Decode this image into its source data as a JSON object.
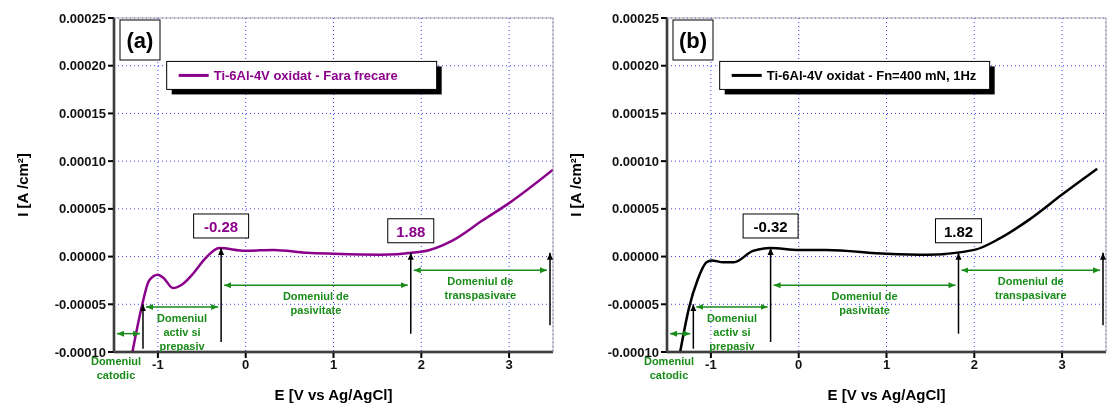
{
  "chart_data": [
    {
      "type": "line",
      "title": "(a)",
      "xlabel": "E [V vs Ag/AgCl]",
      "ylabel": "I [A /cm²]",
      "xlim": [
        -1.5,
        3.5
      ],
      "xticks": [
        -1,
        0,
        1,
        2,
        3
      ],
      "ylim": [
        -0.0001,
        0.00025
      ],
      "yticks": [
        {
          "value": -0.0001,
          "label": "-0.00010"
        },
        {
          "value": -5e-05,
          "label": "-0.00005"
        },
        {
          "value": 0,
          "label": "0.00000"
        },
        {
          "value": 5e-05,
          "label": "0.00005"
        },
        {
          "value": 0.0001,
          "label": "0.00010"
        },
        {
          "value": 0.00015,
          "label": "0.00015"
        },
        {
          "value": 0.0002,
          "label": "0.00020"
        },
        {
          "value": 0.00025,
          "label": "0.00025"
        }
      ],
      "grid": true,
      "legend": "top",
      "series": [
        {
          "name": "Ti-6Al-4V oxidat - Fara frecare",
          "color": "#8b008b",
          "x": [
            -1.29,
            -1.18,
            -1.1,
            -1.0,
            -0.93,
            -0.83,
            -0.72,
            -0.6,
            -0.47,
            -0.3,
            0,
            0.32,
            0.7,
            1.0,
            1.53,
            2.0,
            2.36,
            2.7,
            3.0,
            3.5
          ],
          "values": [
            -0.0001,
            -5.1e-05,
            -2.5e-05,
            -1.9e-05,
            -2.3e-05,
            -3.3e-05,
            -2.9e-05,
            -1.8e-05,
            -3e-06,
            9e-06,
            6e-06,
            7e-06,
            4e-06,
            3e-06,
            2e-06,
            5e-06,
            1.7e-05,
            3.8e-05,
            5.6e-05,
            9.1e-05
          ]
        }
      ],
      "annotations": [
        {
          "text": "-0.28",
          "x": -0.28,
          "y": 9e-06
        },
        {
          "text": "1.88",
          "x": 1.88,
          "y": 4e-06
        },
        {
          "text": "Domeniul catodic",
          "x": -1.17,
          "y": -5e-05
        },
        "Domeniul activ si prepasiv",
        "Domeniul de pasivitate",
        "Domeniul de transpasivare"
      ]
    },
    {
      "type": "line",
      "title": "(b)",
      "xlabel": "E [V vs Ag/AgCl]",
      "ylabel": "I [A /cm²]",
      "xlim": [
        -1.5,
        3.5
      ],
      "xticks": [
        -1,
        0,
        1,
        2,
        3
      ],
      "ylim": [
        -0.0001,
        0.00025
      ],
      "yticks": [
        {
          "value": -0.0001,
          "label": "-0.00010"
        },
        {
          "value": -5e-05,
          "label": "-0.00005"
        },
        {
          "value": 0,
          "label": "0.00000"
        },
        {
          "value": 5e-05,
          "label": "0.00005"
        },
        {
          "value": 0.0001,
          "label": "0.00010"
        },
        {
          "value": 0.00015,
          "label": "0.00015"
        },
        {
          "value": 0.0002,
          "label": "0.00020"
        },
        {
          "value": 0.00025,
          "label": "0.00025"
        }
      ],
      "grid": true,
      "legend": "top",
      "series": [
        {
          "name": "Ti-6Al-4V oxidat - Fn=400 mN, 1Hz",
          "color": "#000000",
          "x": [
            -1.35,
            -1.25,
            -1.15,
            -1.05,
            -0.99,
            -0.86,
            -0.74,
            -0.52,
            -0.32,
            0,
            0.31,
            1.0,
            1.47,
            2.0,
            2.29,
            2.63,
            3.0,
            3.4
          ],
          "values": [
            -0.0001,
            -5.4e-05,
            -2.4e-05,
            -6e-06,
            -4e-06,
            -6e-06,
            -6e-06,
            6e-06,
            9e-06,
            7e-06,
            7e-06,
            3e-06,
            2e-06,
            7e-06,
            1.9e-05,
            3.9e-05,
            6.5e-05,
            9.2e-05
          ]
        }
      ],
      "annotations": [
        {
          "text": "-0.32",
          "x": -0.32,
          "y": 9e-06
        },
        {
          "text": "1.82",
          "x": 1.82,
          "y": 4e-06
        },
        {
          "text": "Domeniul catodic",
          "x": -1.2,
          "y": -5e-05
        },
        "Domeniul activ si prepasiv",
        "Domeniul de pasivitate",
        "Domeniul de transpasivare"
      ]
    }
  ]
}
